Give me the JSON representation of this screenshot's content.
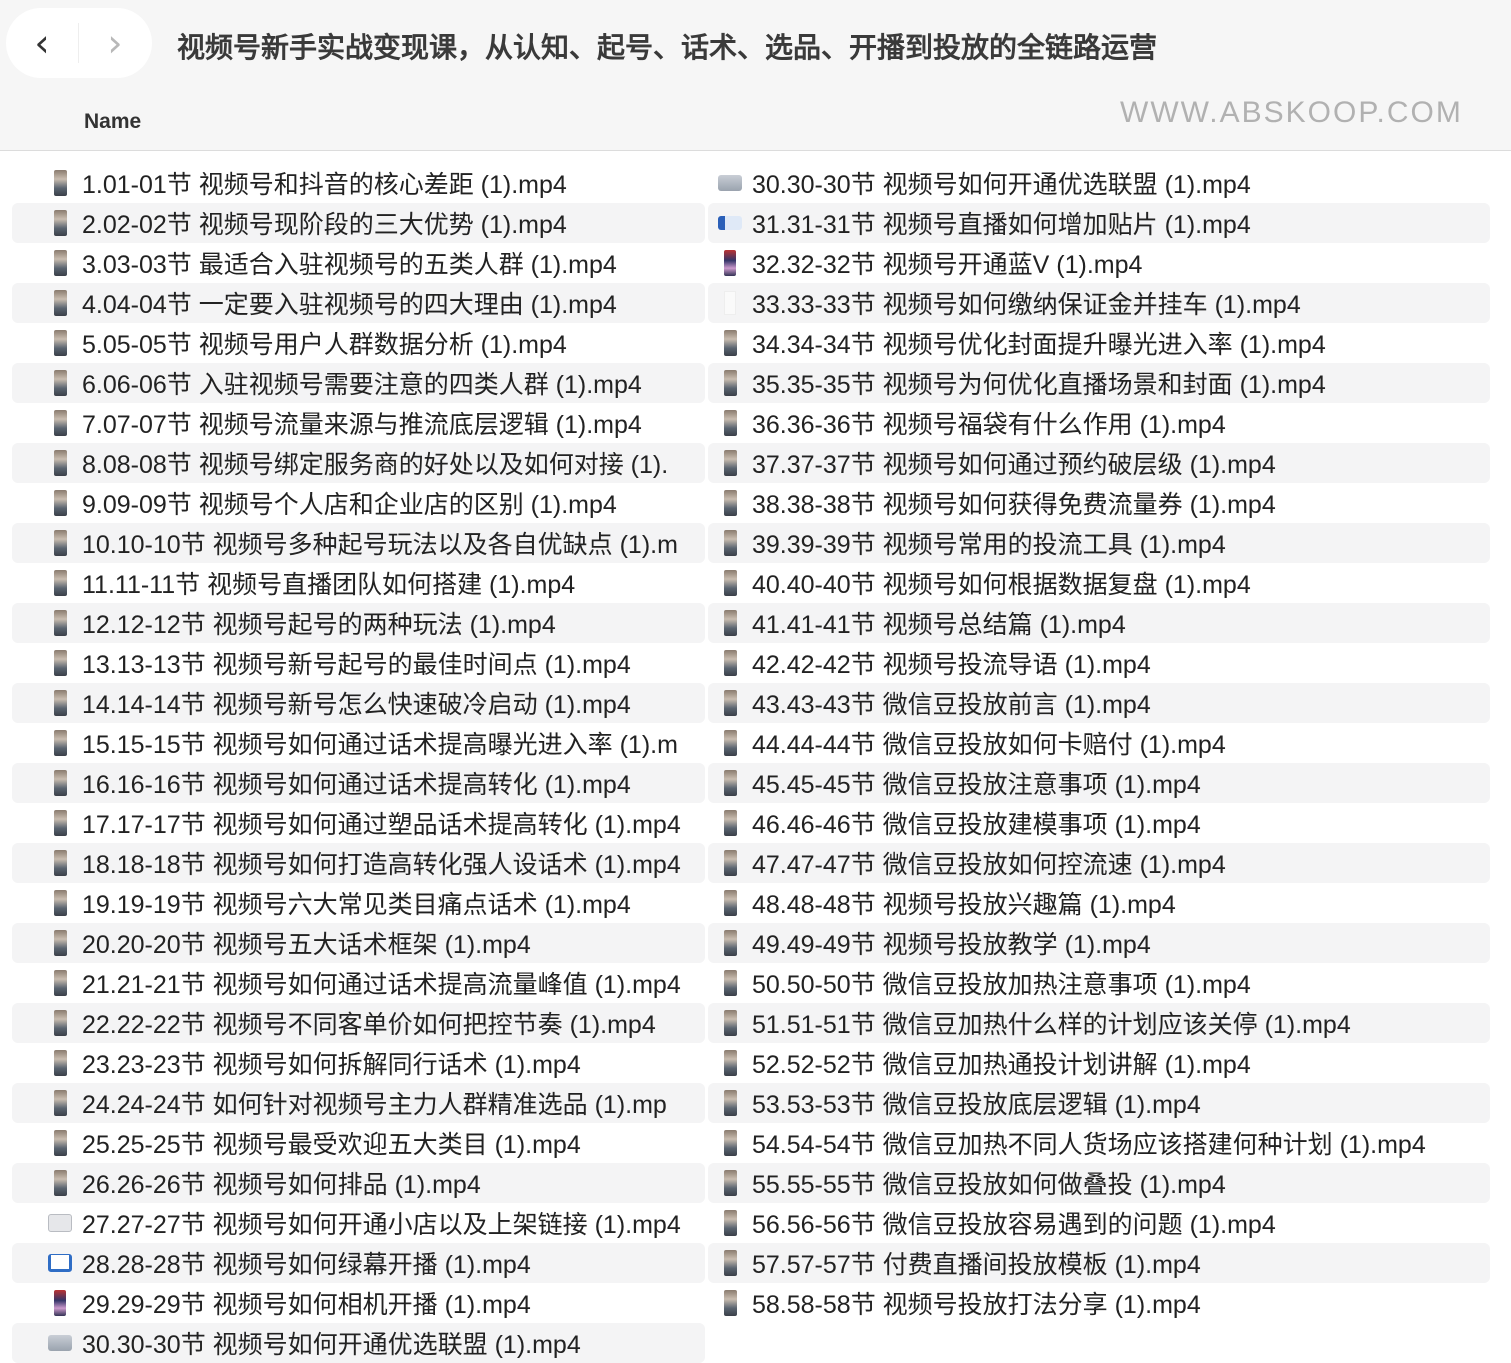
{
  "window": {
    "title": "视频号新手实战变现课，从认知、起号、话术、选品、开播到投放的全链路运营",
    "back_icon": "chevron-left-icon",
    "forward_icon": "chevron-right-icon"
  },
  "list": {
    "column_header": "Name",
    "left": [
      {
        "name": "1.01-01节 视频号和抖音的核心差距 (1).mp4",
        "icon": "p"
      },
      {
        "name": "2.02-02节 视频号现阶段的三大优势 (1).mp4",
        "icon": "p"
      },
      {
        "name": "3.03-03节 最适合入驻视频号的五类人群 (1).mp4",
        "icon": "p"
      },
      {
        "name": "4.04-04节 一定要入驻视频号的四大理由 (1).mp4",
        "icon": "p"
      },
      {
        "name": "5.05-05节 视频号用户人群数据分析 (1).mp4",
        "icon": "p"
      },
      {
        "name": "6.06-06节 入驻视频号需要注意的四类人群 (1).mp4",
        "icon": "p"
      },
      {
        "name": "7.07-07节 视频号流量来源与推流底层逻辑 (1).mp4",
        "icon": "p"
      },
      {
        "name": "8.08-08节 视频号绑定服务商的好处以及如何对接 (1).",
        "icon": "p"
      },
      {
        "name": "9.09-09节 视频号个人店和企业店的区别 (1).mp4",
        "icon": "p"
      },
      {
        "name": "10.10-10节 视频号多种起号玩法以及各自优缺点 (1).m",
        "icon": "p"
      },
      {
        "name": "11.11-11节 视频号直播团队如何搭建 (1).mp4",
        "icon": "p"
      },
      {
        "name": "12.12-12节 视频号起号的两种玩法 (1).mp4",
        "icon": "p"
      },
      {
        "name": "13.13-13节 视频号新号起号的最佳时间点 (1).mp4",
        "icon": "p"
      },
      {
        "name": "14.14-14节 视频号新号怎么快速破冷启动 (1).mp4",
        "icon": "p"
      },
      {
        "name": "15.15-15节 视频号如何通过话术提高曝光进入率 (1).m",
        "icon": "p"
      },
      {
        "name": "16.16-16节 视频号如何通过话术提高转化 (1).mp4",
        "icon": "p"
      },
      {
        "name": "17.17-17节 视频号如何通过塑品话术提高转化 (1).mp4",
        "icon": "p"
      },
      {
        "name": "18.18-18节 视频号如何打造高转化强人设话术 (1).mp4",
        "icon": "p"
      },
      {
        "name": "19.19-19节 视频号六大常见类目痛点话术 (1).mp4",
        "icon": "p"
      },
      {
        "name": "20.20-20节 视频号五大话术框架 (1).mp4",
        "icon": "p"
      },
      {
        "name": "21.21-21节 视频号如何通过话术提高流量峰值 (1).mp4",
        "icon": "p"
      },
      {
        "name": "22.22-22节 视频号不同客单价如何把控节奏 (1).mp4",
        "icon": "p"
      },
      {
        "name": "23.23-23节 视频号如何拆解同行话术 (1).mp4",
        "icon": "p"
      },
      {
        "name": "24.24-24节 如何针对视频号主力人群精准选品 (1).mp",
        "icon": "p"
      },
      {
        "name": "25.25-25节 视频号最受欢迎五大类目 (1).mp4",
        "icon": "p"
      },
      {
        "name": "26.26-26节 视频号如何排品 (1).mp4",
        "icon": "p"
      },
      {
        "name": "27.27-27节 视频号如何开通小店以及上架链接 (1).mp4",
        "icon": "w"
      },
      {
        "name": "28.28-28节 视频号如何绿幕开播 (1).mp4",
        "icon": "b"
      },
      {
        "name": "29.29-29节 视频号如何相机开播 (1).mp4",
        "icon": "ph"
      },
      {
        "name": "30.30-30节 视频号如何开通优选联盟 (1).mp4",
        "icon": "g"
      }
    ],
    "right": [
      {
        "name": "30.30-30节 视频号如何开通优选联盟 (1).mp4",
        "icon": "g"
      },
      {
        "name": "31.31-31节 视频号直播如何增加贴片 (1).mp4",
        "icon": "bw"
      },
      {
        "name": "32.32-32节 视频号开通蓝V (1).mp4",
        "icon": "ph"
      },
      {
        "name": "33.33-33节 视频号如何缴纳保证金并挂车 (1).mp4",
        "icon": "wh"
      },
      {
        "name": "34.34-34节 视频号优化封面提升曝光进入率 (1).mp4",
        "icon": "p"
      },
      {
        "name": "35.35-35节 视频号为何优化直播场景和封面 (1).mp4",
        "icon": "p"
      },
      {
        "name": "36.36-36节 视频号福袋有什么作用 (1).mp4",
        "icon": "p"
      },
      {
        "name": "37.37-37节 视频号如何通过预约破层级 (1).mp4",
        "icon": "p"
      },
      {
        "name": "38.38-38节 视频号如何获得免费流量券 (1).mp4",
        "icon": "p"
      },
      {
        "name": "39.39-39节 视频号常用的投流工具 (1).mp4",
        "icon": "p"
      },
      {
        "name": "40.40-40节 视频号如何根据数据复盘 (1).mp4",
        "icon": "p"
      },
      {
        "name": "41.41-41节 视频号总结篇 (1).mp4",
        "icon": "p"
      },
      {
        "name": "42.42-42节 视频号投流导语 (1).mp4",
        "icon": "p"
      },
      {
        "name": "43.43-43节 微信豆投放前言 (1).mp4",
        "icon": "p"
      },
      {
        "name": "44.44-44节 微信豆投放如何卡赔付 (1).mp4",
        "icon": "p"
      },
      {
        "name": "45.45-45节 微信豆投放注意事项 (1).mp4",
        "icon": "p"
      },
      {
        "name": "46.46-46节 微信豆投放建模事项 (1).mp4",
        "icon": "p"
      },
      {
        "name": "47.47-47节 微信豆投放如何控流速 (1).mp4",
        "icon": "p"
      },
      {
        "name": "48.48-48节 视频号投放兴趣篇 (1).mp4",
        "icon": "p"
      },
      {
        "name": "49.49-49节 视频号投放教学 (1).mp4",
        "icon": "p"
      },
      {
        "name": "50.50-50节 微信豆投放加热注意事项 (1).mp4",
        "icon": "p"
      },
      {
        "name": "51.51-51节 微信豆加热什么样的计划应该关停 (1).mp4",
        "icon": "p"
      },
      {
        "name": "52.52-52节 微信豆加热通投计划讲解 (1).mp4",
        "icon": "p"
      },
      {
        "name": "53.53-53节 微信豆投放底层逻辑 (1).mp4",
        "icon": "p"
      },
      {
        "name": "54.54-54节 微信豆加热不同人货场应该搭建何种计划 (1).mp4",
        "icon": "p"
      },
      {
        "name": "55.55-55节 微信豆投放如何做叠投 (1).mp4",
        "icon": "p"
      },
      {
        "name": "56.56-56节 微信豆投放容易遇到的问题 (1).mp4",
        "icon": "p"
      },
      {
        "name": "57.57-57节 付费直播间投放模板 (1).mp4",
        "icon": "p"
      },
      {
        "name": "58.58-58节 视频号投放打法分享 (1).mp4",
        "icon": "p"
      }
    ]
  },
  "watermark": "WWW.ABSKOOP.COM"
}
